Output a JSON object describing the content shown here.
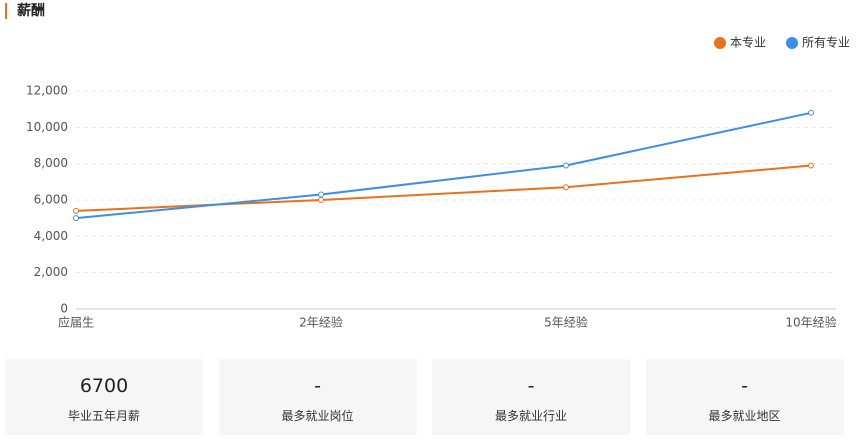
{
  "chart_data": {
    "type": "line",
    "title": "薪酬",
    "categories": [
      "应届生",
      "2年经验",
      "5年经验",
      "10年经验"
    ],
    "series": [
      {
        "name": "本专业",
        "color": "#e8711c",
        "values": [
          5400,
          6000,
          6700,
          7900
        ]
      },
      {
        "name": "所有专业",
        "color": "#3d8ee6",
        "values": [
          5000,
          6300,
          7900,
          10800
        ]
      }
    ],
    "ylim": [
      0,
      12000
    ],
    "yticks": [
      0,
      {
        "value": 2000,
        "label": "2,000"
      },
      {
        "value": 4000,
        "label": "4,000"
      },
      {
        "value": 6000,
        "label": "6,000"
      },
      {
        "value": 8000,
        "label": "8,000"
      },
      {
        "value": 10000,
        "label": "10,000"
      },
      {
        "value": 12000,
        "label": "12,000"
      }
    ],
    "grid": true,
    "legend": "top-right"
  },
  "cards": [
    {
      "value": "6700",
      "label": "毕业五年月薪"
    },
    {
      "value": "-",
      "label": "最多就业岗位"
    },
    {
      "value": "-",
      "label": "最多就业行业"
    },
    {
      "value": "-",
      "label": "最多就业地区"
    }
  ]
}
